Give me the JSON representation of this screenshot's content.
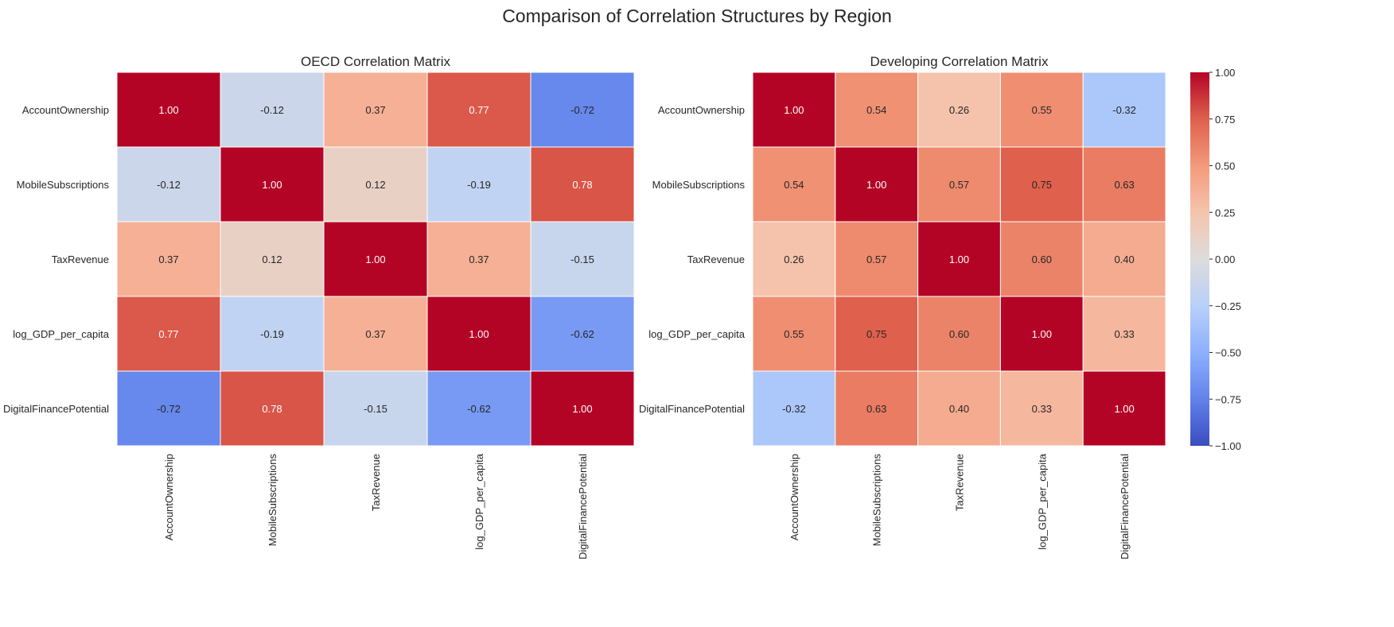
{
  "figure_title": "Comparison of Correlation Structures by Region",
  "chart_data": [
    {
      "type": "heatmap",
      "title": "OECD Correlation Matrix",
      "variables": [
        "AccountOwnership",
        "MobileSubscriptions",
        "TaxRevenue",
        "log_GDP_per_capita",
        "DigitalFinancePotential"
      ],
      "values": [
        [
          1.0,
          -0.12,
          0.37,
          0.77,
          -0.72
        ],
        [
          -0.12,
          1.0,
          0.12,
          -0.19,
          0.78
        ],
        [
          0.37,
          0.12,
          1.0,
          0.37,
          -0.15
        ],
        [
          0.77,
          -0.19,
          0.37,
          1.0,
          -0.62
        ],
        [
          -0.72,
          0.78,
          -0.15,
          -0.62,
          1.0
        ]
      ],
      "value_format": "0.00",
      "colormap": "coolwarm",
      "vmin": -1,
      "vmax": 1
    },
    {
      "type": "heatmap",
      "title": "Developing Correlation Matrix",
      "variables": [
        "AccountOwnership",
        "MobileSubscriptions",
        "TaxRevenue",
        "log_GDP_per_capita",
        "DigitalFinancePotential"
      ],
      "values": [
        [
          1.0,
          0.54,
          0.26,
          0.55,
          -0.32
        ],
        [
          0.54,
          1.0,
          0.57,
          0.75,
          0.63
        ],
        [
          0.26,
          0.57,
          1.0,
          0.6,
          0.4
        ],
        [
          0.55,
          0.75,
          0.6,
          1.0,
          0.33
        ],
        [
          -0.32,
          0.63,
          0.4,
          0.33,
          1.0
        ]
      ],
      "value_format": "0.00",
      "colormap": "coolwarm",
      "vmin": -1,
      "vmax": 1
    }
  ],
  "colorbar": {
    "ticks": [
      "1.00",
      "0.75",
      "0.50",
      "0.25",
      "0.00",
      "−0.25",
      "−0.50",
      "−0.75",
      "−1.00"
    ],
    "tick_values": [
      1.0,
      0.75,
      0.5,
      0.25,
      0.0,
      -0.25,
      -0.5,
      -0.75,
      -1.0
    ]
  }
}
